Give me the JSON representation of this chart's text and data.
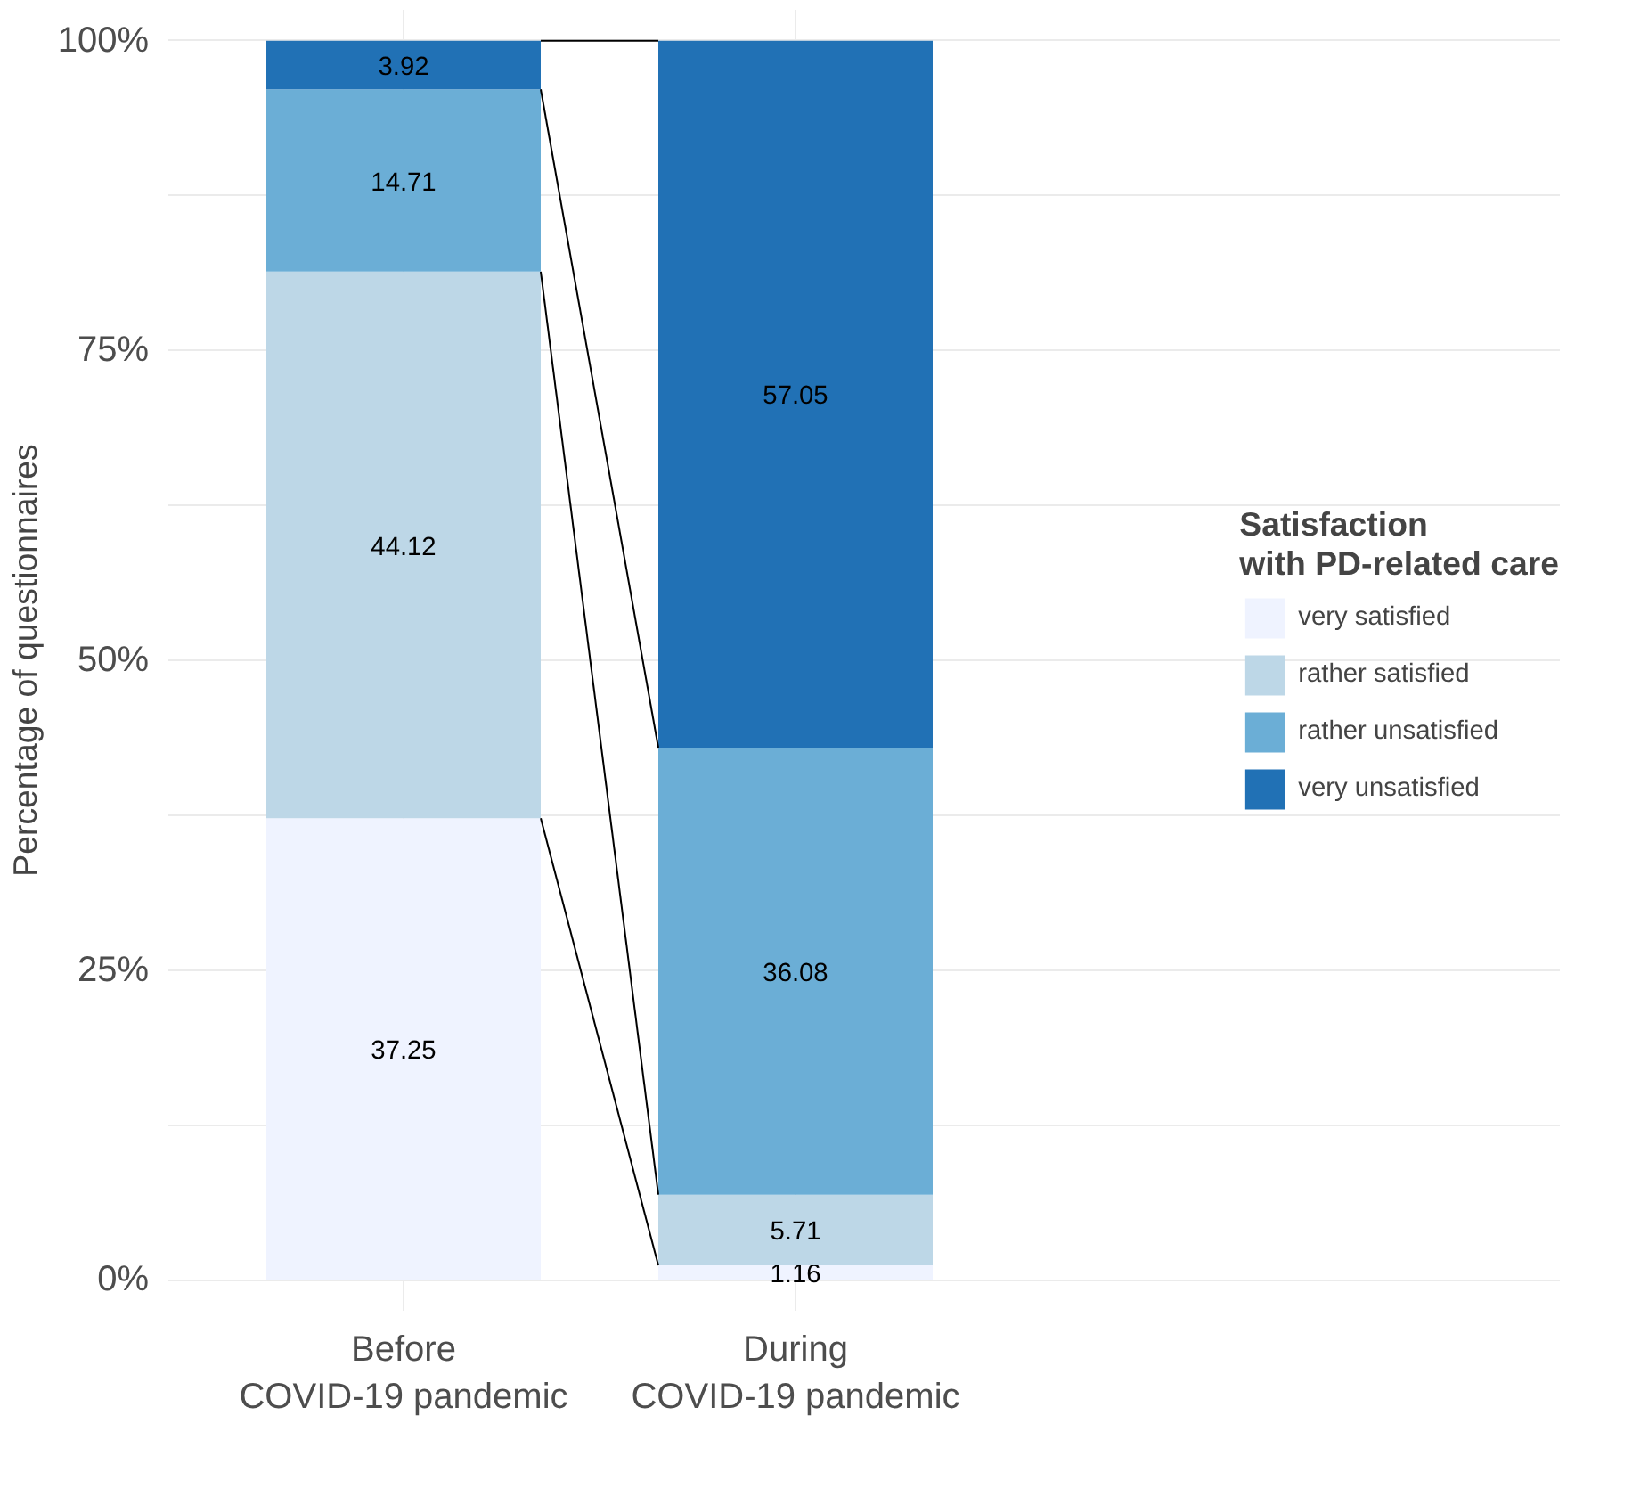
{
  "chart_data": {
    "type": "bar",
    "stacked": true,
    "ylabel": "Percentage of questionnaires",
    "legend_title": "Satisfaction\nwith PD-related care",
    "categories": [
      "Before\nCOVID-19 pandemic",
      "During\nCOVID-19 pandemic"
    ],
    "series": [
      {
        "name": "very satisfied",
        "color": "#eff3ff",
        "values": [
          37.25,
          1.16
        ]
      },
      {
        "name": "rather satisfied",
        "color": "#bdd7e7",
        "values": [
          44.12,
          5.71
        ]
      },
      {
        "name": "rather unsatisfied",
        "color": "#6baed6",
        "values": [
          14.71,
          36.08
        ]
      },
      {
        "name": "very unsatisfied",
        "color": "#2171b5",
        "values": [
          3.92,
          57.05
        ]
      }
    ],
    "ylim": [
      0,
      100
    ],
    "yticks": [
      {
        "value": 0,
        "label": "0%"
      },
      {
        "value": 25,
        "label": "25%"
      },
      {
        "value": 50,
        "label": "50%"
      },
      {
        "value": 75,
        "label": "75%"
      },
      {
        "value": 100,
        "label": "100%"
      }
    ],
    "data_labels": true,
    "grid": true,
    "legend": "right"
  }
}
